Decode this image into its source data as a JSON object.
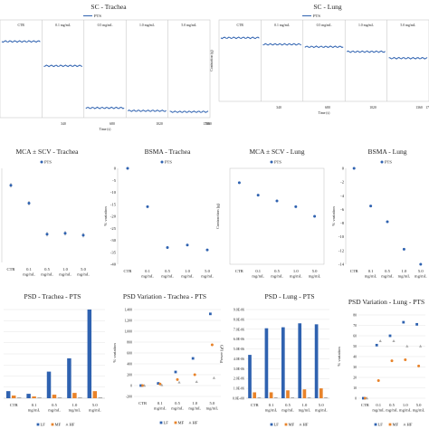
{
  "colors": {
    "blue": "#2f62b0",
    "orange": "#e8832a",
    "gray": "#a8a8a8",
    "grid": "#e4e4e4",
    "axis": "#bfbfbf"
  },
  "chart_data": [
    {
      "id": "sc-trachea",
      "type": "line",
      "title": "SC - Trachea",
      "legend": "PTS",
      "xlabel": "Time (s)",
      "xticks": [
        "340",
        "680",
        "1020",
        "1360",
        "1700"
      ],
      "segment_labels": [
        "CTR",
        "0.1 mg/mL",
        "0.5 mg/mL",
        "1.0 mg/mL",
        "5.0 mg/mL"
      ],
      "segment_levels": [
        0.78,
        0.53,
        0.1,
        0.07,
        0.06
      ]
    },
    {
      "id": "sc-lung",
      "type": "line",
      "title": "SC - Lung",
      "legend": "PTS",
      "xlabel": "Time (s)",
      "ylabel": "Contraction (g)",
      "xticks": [
        "340",
        "680",
        "1020",
        "1360",
        "1700"
      ],
      "segment_labels": [
        "CTR",
        "0.1 mg/mL",
        "0.5 mg/mL",
        "1.0 mg/mL",
        "5.0 mg/mL"
      ],
      "segment_levels": [
        0.78,
        0.7,
        0.67,
        0.61,
        0.53
      ]
    },
    {
      "id": "mca-trachea",
      "type": "scatter",
      "title": "MCA ± SCV - Trachea",
      "legend": "PTS",
      "categories": [
        "CTR",
        "0.1 mg/mL",
        "0.5 mg/mL",
        "1.0 mg/mL",
        "5.0 mg/mL"
      ],
      "values": [
        0.82,
        0.63,
        0.3,
        0.31,
        0.29
      ]
    },
    {
      "id": "bsma-trachea",
      "type": "scatter",
      "title": "BSMA - Trachea",
      "legend": "PTS",
      "ylabel": "% variation",
      "yticks": [
        "0",
        "-5",
        "-10",
        "-15",
        "-20",
        "-25",
        "-30",
        "-35",
        "-40"
      ],
      "ylim": [
        -40,
        0
      ],
      "categories": [
        "CTR",
        "0.1 mg/mL",
        "0.5 mg/mL",
        "1.0 mg/mL",
        "5.0 mg/mL"
      ],
      "values": [
        0,
        -16,
        -33,
        -32,
        -34
      ]
    },
    {
      "id": "mca-lung",
      "type": "scatter",
      "title": "MCA ± SCV - Lung",
      "legend": "PTS",
      "ylabel": "Contraction (g)",
      "categories": [
        "CTR",
        "0.1 mg/mL",
        "0.5 mg/mL",
        "1.0 mg/mL",
        "5.0 mg/mL"
      ],
      "values": [
        0.85,
        0.72,
        0.66,
        0.6,
        0.5
      ]
    },
    {
      "id": "bsma-lung",
      "type": "scatter",
      "title": "BSMA - Lung",
      "legend": "PTS",
      "ylabel": "% variation",
      "yticks": [
        "0",
        "-2",
        "-4",
        "-6",
        "-8",
        "-10",
        "-12",
        "-14"
      ],
      "ylim": [
        -14,
        0
      ],
      "categories": [
        "CTR",
        "0.1 mg/mL",
        "0.5 mg/mL",
        "1.0 mg/mL",
        "5.0 mg/mL"
      ],
      "values": [
        0,
        -5.5,
        -7.8,
        -11.8,
        -14
      ]
    },
    {
      "id": "psd-trachea",
      "type": "bar",
      "title": "PSD - Trachea - PTS",
      "categories": [
        "CTR",
        "0.1 mg/mL",
        "0.5 mg/mL",
        "1.0 mg/mL",
        "5.0 mg/mL"
      ],
      "legend": [
        "LF",
        "MF",
        "HF"
      ],
      "series": [
        {
          "name": "LF",
          "values": [
            0.08,
            0.05,
            0.3,
            0.45,
            1.0
          ]
        },
        {
          "name": "MF",
          "values": [
            0.03,
            0.02,
            0.04,
            0.06,
            0.08
          ]
        },
        {
          "name": "HF",
          "values": [
            0.01,
            0.01,
            0.01,
            0.01,
            0.01
          ]
        }
      ]
    },
    {
      "id": "psd-var-trachea",
      "type": "scatter",
      "title": "PSD Variation - Trachea - PTS",
      "ylabel": "% variation",
      "yticks": [
        "1,400",
        "1,200",
        "1,000",
        "800",
        "600",
        "400",
        "200",
        "0",
        "-200"
      ],
      "ylim": [
        -200,
        1400
      ],
      "categories": [
        "CTR",
        "0.1 mg/mL",
        "0.5 mg/mL",
        "1.0 mg/mL",
        "5.0 mg/mL"
      ],
      "legend": [
        "LF",
        "MF",
        "HF"
      ],
      "series": [
        {
          "name": "LF",
          "values": [
            0,
            40,
            250,
            500,
            1320
          ]
        },
        {
          "name": "MF",
          "values": [
            0,
            30,
            110,
            200,
            750
          ]
        },
        {
          "name": "HF",
          "values": [
            0,
            10,
            60,
            70,
            140
          ]
        }
      ]
    },
    {
      "id": "psd-lung",
      "type": "bar",
      "title": "PSD - Lung - PTS",
      "ylabel": "Power (g²)",
      "yticks": [
        "9.0E-06",
        "8.0E-06",
        "7.0E-06",
        "6.0E-06",
        "5.0E-06",
        "4.0E-06",
        "3.0E-06",
        "2.0E-06",
        "1.0E-06",
        "0.0E+00"
      ],
      "ylim": [
        0,
        9e-06
      ],
      "categories": [
        "CTR",
        "0.1 mg/mL",
        "0.5 mg/mL",
        "1.0 mg/mL",
        "5.0 mg/mL"
      ],
      "legend": [
        "LF",
        "MF",
        "HF"
      ],
      "series": [
        {
          "name": "LF",
          "values": [
            4.4e-06,
            7.1e-06,
            7.2e-06,
            7.6e-06,
            7.5e-06
          ]
        },
        {
          "name": "MF",
          "values": [
            6e-07,
            6e-07,
            8e-07,
            9e-07,
            1e-06
          ]
        },
        {
          "name": "HF",
          "values": [
            1e-07,
            1e-07,
            1e-07,
            1e-07,
            1e-07
          ]
        }
      ]
    },
    {
      "id": "psd-var-lung",
      "type": "scatter",
      "title": "PSD Variation - Lung - PTS",
      "ylabel": "% variation",
      "yticks": [
        "80",
        "70",
        "60",
        "50",
        "40",
        "30",
        "20",
        "10",
        "0"
      ],
      "ylim": [
        0,
        80
      ],
      "categories": [
        "CTR",
        "0.1 mg/mL",
        "0.5 mg/mL",
        "1.0 mg/mL",
        "5.0 mg/mL"
      ],
      "legend": [
        "LF",
        "MF",
        "HF"
      ],
      "series": [
        {
          "name": "LF",
          "values": [
            0,
            51,
            60,
            73,
            71
          ]
        },
        {
          "name": "MF",
          "values": [
            0,
            17,
            36,
            37,
            31
          ]
        },
        {
          "name": "HF",
          "values": [
            0,
            55,
            55,
            50,
            50
          ]
        }
      ]
    }
  ]
}
